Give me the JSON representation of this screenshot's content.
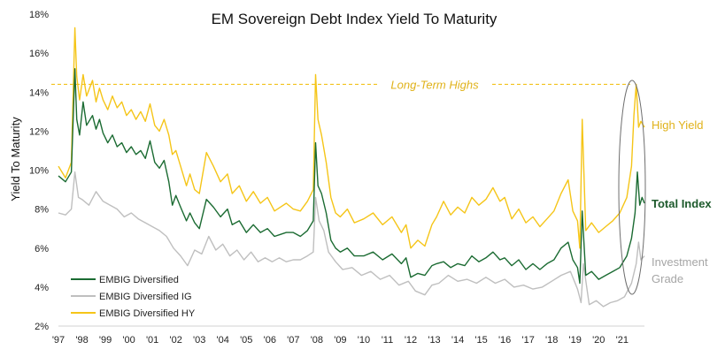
{
  "chart_data": {
    "type": "line",
    "title": "EM Sovereign Debt Index Yield To Maturity",
    "xlabel": "",
    "ylabel": "Yield To Maturity",
    "ylim": [
      2,
      18
    ],
    "xlim": [
      1997.0,
      2021.95
    ],
    "y_ticks": [
      "2%",
      "4%",
      "6%",
      "8%",
      "10%",
      "12%",
      "14%",
      "16%",
      "18%"
    ],
    "y_tick_values": [
      2,
      4,
      6,
      8,
      10,
      12,
      14,
      16,
      18
    ],
    "x_ticks": [
      "'97",
      "'98",
      "'99",
      "'00",
      "'01",
      "'02",
      "'03",
      "'04",
      "'05",
      "'06",
      "'07",
      "'08",
      "'09",
      "'10",
      "'11",
      "'12",
      "'13",
      "'14",
      "'15",
      "'16",
      "'17",
      "'18",
      "'19",
      "'20",
      "'21"
    ],
    "x_tick_values": [
      1997,
      1998,
      1999,
      2000,
      2001,
      2002,
      2003,
      2004,
      2005,
      2006,
      2007,
      2008,
      2009,
      2010,
      2011,
      2012,
      2013,
      2014,
      2015,
      2016,
      2017,
      2018,
      2019,
      2020,
      2021
    ],
    "grid": false,
    "legend": {
      "position": "bottom-left",
      "entries": [
        "EMBIG Diversified",
        "EMBIG Diversified IG",
        "EMBIG Diversified HY"
      ]
    },
    "reference_line": {
      "label": "Long-Term Highs",
      "y": 14.4,
      "color": "#f2c21b",
      "style": "dashed"
    },
    "annotations": [
      {
        "text": "High Yield",
        "color": "#e0b21a"
      },
      {
        "text": "Total Index",
        "color": "#1d5a2c"
      },
      {
        "text": "Investment",
        "color": "#a6a6a6"
      },
      {
        "text": "Grade",
        "color": "#a6a6a6"
      }
    ],
    "series": [
      {
        "name": "EMBIG Diversified",
        "color": "#1b6b32",
        "x": [
          1997.0,
          1997.3,
          1997.55,
          1997.7,
          1997.78,
          1997.9,
          1998.05,
          1998.2,
          1998.45,
          1998.6,
          1998.75,
          1998.9,
          1999.1,
          1999.3,
          1999.5,
          1999.7,
          1999.9,
          2000.1,
          2000.3,
          2000.5,
          2000.7,
          2000.9,
          2001.1,
          2001.3,
          2001.5,
          2001.7,
          2001.85,
          2002.0,
          2002.2,
          2002.45,
          2002.6,
          2002.8,
          2003.0,
          2003.3,
          2003.6,
          2003.9,
          2004.2,
          2004.4,
          2004.7,
          2005.0,
          2005.3,
          2005.6,
          2005.9,
          2006.2,
          2006.45,
          2006.7,
          2007.0,
          2007.3,
          2007.6,
          2007.85,
          2007.95,
          2008.05,
          2008.2,
          2008.4,
          2008.6,
          2008.8,
          2009.0,
          2009.3,
          2009.6,
          2010.0,
          2010.4,
          2010.8,
          2011.2,
          2011.6,
          2011.8,
          2012.0,
          2012.3,
          2012.6,
          2012.9,
          2013.1,
          2013.4,
          2013.7,
          2014.0,
          2014.3,
          2014.6,
          2014.9,
          2015.2,
          2015.5,
          2015.8,
          2016.0,
          2016.3,
          2016.6,
          2016.9,
          2017.2,
          2017.5,
          2017.8,
          2018.1,
          2018.4,
          2018.7,
          2018.9,
          2019.1,
          2019.2,
          2019.3,
          2019.45,
          2019.7,
          2020.0,
          2020.3,
          2020.6,
          2020.9,
          2021.2,
          2021.4,
          2021.55,
          2021.65,
          2021.75,
          2021.85,
          2021.95
        ],
        "values": [
          9.7,
          9.4,
          9.9,
          15.2,
          12.6,
          11.8,
          13.5,
          12.3,
          12.8,
          12.1,
          12.6,
          11.9,
          11.4,
          11.8,
          11.2,
          11.4,
          10.9,
          11.2,
          10.8,
          11.0,
          10.6,
          11.5,
          10.4,
          10.1,
          10.5,
          9.4,
          8.2,
          8.7,
          8.1,
          7.4,
          7.8,
          7.3,
          7.0,
          8.5,
          8.1,
          7.6,
          8.0,
          7.2,
          7.4,
          6.8,
          7.2,
          6.8,
          7.0,
          6.6,
          6.7,
          6.8,
          6.8,
          6.6,
          6.9,
          7.4,
          11.4,
          9.2,
          8.8,
          7.8,
          6.4,
          6.0,
          5.8,
          6.0,
          5.6,
          5.6,
          5.8,
          5.4,
          5.7,
          5.2,
          5.5,
          4.5,
          4.7,
          4.6,
          5.1,
          5.2,
          5.3,
          5.0,
          5.2,
          5.1,
          5.6,
          5.3,
          5.5,
          5.8,
          5.4,
          5.5,
          5.1,
          5.4,
          4.9,
          5.2,
          4.9,
          5.2,
          5.4,
          6.0,
          6.3,
          5.4,
          5.0,
          4.2,
          7.9,
          4.6,
          4.8,
          4.4,
          4.6,
          4.8,
          5.0,
          5.6,
          6.5,
          7.8,
          9.9,
          8.2,
          8.6,
          8.3
        ]
      },
      {
        "name": "EMBIG Diversified IG",
        "color": "#bfbfbf",
        "x": [
          1997.0,
          1997.3,
          1997.55,
          1997.7,
          1997.85,
          1998.0,
          1998.3,
          1998.6,
          1998.9,
          1999.2,
          1999.5,
          1999.8,
          2000.1,
          2000.4,
          2000.7,
          2001.0,
          2001.3,
          2001.6,
          2001.9,
          2002.2,
          2002.5,
          2002.8,
          2003.1,
          2003.4,
          2003.7,
          2004.0,
          2004.3,
          2004.6,
          2004.9,
          2005.2,
          2005.5,
          2005.8,
          2006.1,
          2006.4,
          2006.7,
          2007.0,
          2007.3,
          2007.6,
          2007.85,
          2007.95,
          2008.1,
          2008.3,
          2008.5,
          2008.8,
          2009.1,
          2009.5,
          2009.9,
          2010.3,
          2010.7,
          2011.1,
          2011.5,
          2011.9,
          2012.2,
          2012.6,
          2012.9,
          2013.2,
          2013.6,
          2014.0,
          2014.4,
          2014.8,
          2015.2,
          2015.6,
          2016.0,
          2016.4,
          2016.8,
          2017.2,
          2017.6,
          2018.0,
          2018.4,
          2018.8,
          2019.1,
          2019.25,
          2019.35,
          2019.6,
          2019.9,
          2020.2,
          2020.5,
          2020.8,
          2021.1,
          2021.4,
          2021.6,
          2021.7,
          2021.8,
          2021.95
        ],
        "values": [
          7.8,
          7.7,
          8.0,
          9.9,
          8.6,
          8.5,
          8.2,
          8.9,
          8.4,
          8.2,
          8.0,
          7.6,
          7.8,
          7.5,
          7.3,
          7.1,
          6.9,
          6.6,
          6.0,
          5.6,
          5.1,
          5.9,
          5.7,
          6.6,
          5.9,
          6.2,
          5.6,
          5.9,
          5.4,
          5.8,
          5.3,
          5.5,
          5.3,
          5.5,
          5.3,
          5.4,
          5.4,
          5.6,
          5.8,
          8.6,
          7.4,
          6.9,
          5.8,
          5.3,
          4.9,
          5.0,
          4.6,
          4.8,
          4.4,
          4.6,
          4.1,
          4.3,
          3.8,
          3.6,
          4.1,
          4.2,
          4.6,
          4.3,
          4.4,
          4.2,
          4.5,
          4.2,
          4.4,
          4.0,
          4.1,
          3.9,
          4.0,
          4.3,
          4.6,
          4.8,
          3.9,
          3.2,
          5.2,
          3.1,
          3.3,
          3.0,
          3.2,
          3.3,
          3.5,
          4.2,
          5.2,
          6.3,
          5.4,
          5.6
        ]
      },
      {
        "name": "EMBIG Diversified HY",
        "color": "#f5c518",
        "x": [
          1997.0,
          1997.3,
          1997.55,
          1997.7,
          1997.78,
          1997.9,
          1998.05,
          1998.2,
          1998.45,
          1998.6,
          1998.75,
          1998.9,
          1999.1,
          1999.3,
          1999.5,
          1999.7,
          1999.9,
          2000.1,
          2000.3,
          2000.5,
          2000.7,
          2000.9,
          2001.1,
          2001.3,
          2001.5,
          2001.7,
          2001.85,
          2002.0,
          2002.2,
          2002.45,
          2002.6,
          2002.8,
          2003.0,
          2003.3,
          2003.6,
          2003.9,
          2004.2,
          2004.4,
          2004.7,
          2005.0,
          2005.3,
          2005.6,
          2005.9,
          2006.2,
          2006.45,
          2006.7,
          2007.0,
          2007.3,
          2007.6,
          2007.85,
          2007.95,
          2008.05,
          2008.2,
          2008.4,
          2008.6,
          2008.8,
          2009.0,
          2009.3,
          2009.6,
          2010.0,
          2010.4,
          2010.8,
          2011.2,
          2011.6,
          2011.8,
          2012.0,
          2012.3,
          2012.6,
          2012.9,
          2013.1,
          2013.4,
          2013.7,
          2014.0,
          2014.3,
          2014.6,
          2014.9,
          2015.2,
          2015.5,
          2015.8,
          2016.0,
          2016.3,
          2016.6,
          2016.9,
          2017.2,
          2017.5,
          2017.8,
          2018.1,
          2018.4,
          2018.7,
          2018.9,
          2019.1,
          2019.2,
          2019.3,
          2019.45,
          2019.7,
          2020.0,
          2020.3,
          2020.6,
          2020.9,
          2021.2,
          2021.4,
          2021.5,
          2021.6,
          2021.7,
          2021.8,
          2021.95
        ],
        "values": [
          10.2,
          9.6,
          10.4,
          17.3,
          14.8,
          13.6,
          14.9,
          13.8,
          14.6,
          13.5,
          14.2,
          13.6,
          13.1,
          13.8,
          13.2,
          13.5,
          12.8,
          13.1,
          12.6,
          13.0,
          12.5,
          13.4,
          12.3,
          12.0,
          12.6,
          11.8,
          10.8,
          11.0,
          10.2,
          9.2,
          9.8,
          9.0,
          8.8,
          10.9,
          10.2,
          9.4,
          9.8,
          8.8,
          9.2,
          8.4,
          8.9,
          8.3,
          8.6,
          7.9,
          8.1,
          8.3,
          8.0,
          7.9,
          8.4,
          9.0,
          14.9,
          12.6,
          11.8,
          10.4,
          8.6,
          7.8,
          7.6,
          8.0,
          7.3,
          7.5,
          7.8,
          7.2,
          7.6,
          6.8,
          7.2,
          6.0,
          6.4,
          6.1,
          7.2,
          7.6,
          8.4,
          7.7,
          8.1,
          7.8,
          8.6,
          8.2,
          8.5,
          9.1,
          8.4,
          8.6,
          7.5,
          8.0,
          7.3,
          7.6,
          7.1,
          7.5,
          7.9,
          8.8,
          9.5,
          7.9,
          7.4,
          6.0,
          12.6,
          6.9,
          7.3,
          6.8,
          7.1,
          7.4,
          7.8,
          8.6,
          10.2,
          12.8,
          14.4,
          12.2,
          12.5,
          12.2
        ]
      }
    ]
  }
}
